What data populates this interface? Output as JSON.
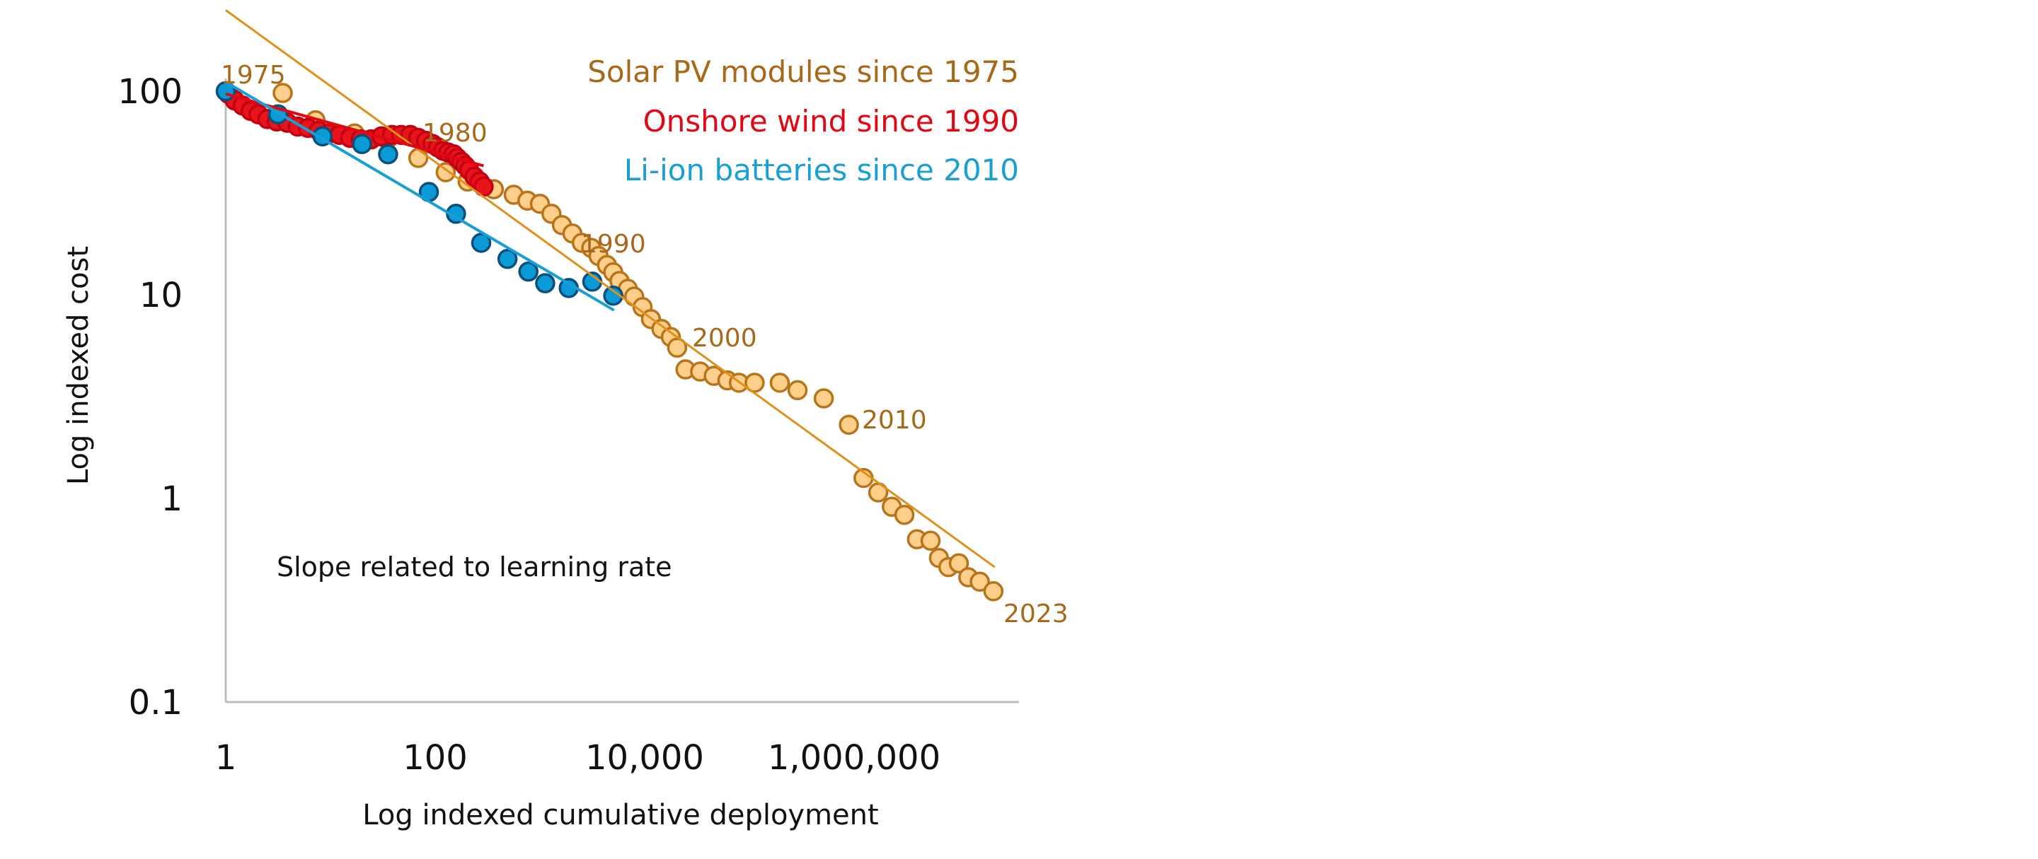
{
  "chart_data": {
    "type": "scatter",
    "title": "",
    "xlabel": "Log indexed cumulative deployment",
    "ylabel": "Log indexed cost",
    "xscale": "log",
    "yscale": "log",
    "xlim": [
      1,
      37000000
    ],
    "ylim": [
      0.1,
      200
    ],
    "x_ticks": [
      {
        "v": 1,
        "label": "1"
      },
      {
        "v": 100,
        "label": "100"
      },
      {
        "v": 10000,
        "label": "10,000"
      },
      {
        "v": 1000000,
        "label": "1,000,000"
      }
    ],
    "y_ticks": [
      {
        "v": 100,
        "label": "100"
      },
      {
        "v": 10,
        "label": "10"
      },
      {
        "v": 1,
        "label": "1"
      },
      {
        "v": 0.1,
        "label": "0.1"
      }
    ],
    "grid": false,
    "legend_placement": "top-right",
    "annotation": "Slope related to learning rate",
    "series": [
      {
        "name": "Solar PV modules since 1975",
        "color": "#a8681a",
        "fill": "#fdcf8a",
        "stroke": "#b8741a",
        "trend_color": "#e0901a",
        "x": [
          3.5,
          7.2,
          17,
          35,
          69,
          126,
          204,
          363,
          562,
          759,
          1000,
          1288,
          1622,
          2042,
          2512,
          3090,
          3631,
          4365,
          5012,
          5754,
          6918,
          7943,
          9550,
          11482,
          14454,
          17783,
          20417,
          24547,
          33884,
          45709,
          61660,
          79433,
          112202,
          194984,
          288403,
          512861,
          891251,
          1230269,
          1698244,
          2290868,
          3019952,
          3981072,
          5370318,
          6456542,
          7943282,
          10000000,
          12302688,
          15848932,
          21379621
        ],
        "y": [
          98,
          72,
          62,
          58,
          47,
          40,
          36,
          33,
          31,
          29,
          28,
          25,
          22,
          20,
          18,
          17,
          15.5,
          14,
          12.9,
          11.7,
          10.7,
          9.8,
          8.7,
          7.6,
          6.8,
          6.2,
          5.5,
          4.3,
          4.2,
          4.0,
          3.8,
          3.7,
          3.7,
          3.7,
          3.4,
          3.1,
          2.3,
          1.26,
          1.07,
          0.91,
          0.83,
          0.63,
          0.62,
          0.51,
          0.46,
          0.48,
          0.41,
          0.39,
          0.35
        ],
        "trend": {
          "x": [
            1,
            22000000
          ],
          "y": [
            250,
            0.46
          ]
        },
        "year_labels": [
          "1975",
          "1980",
          "1990",
          "2000",
          "2010",
          "2023"
        ]
      },
      {
        "name": "Onshore wind since 1990",
        "color": "#e30613",
        "fill": "#e8141b",
        "stroke": "#c40010",
        "trend_color": "#e30613",
        "x": [
          1.06,
          1.22,
          1.45,
          1.73,
          2.05,
          2.5,
          3.07,
          3.87,
          4.87,
          6.1,
          7.7,
          9.7,
          12.2,
          15.4,
          19.4,
          24.4,
          30.7,
          38.7,
          47.3,
          57.9,
          68.8,
          81.8,
          94.4,
          106,
          119,
          133,
          150,
          163,
          178,
          194,
          211,
          237,
          266,
          290
        ],
        "y": [
          97,
          90,
          85,
          80,
          77,
          73,
          71,
          70,
          67,
          66,
          64,
          62,
          61,
          59,
          58,
          58,
          60,
          61,
          61,
          61,
          59,
          57,
          55,
          53,
          51,
          50,
          49,
          47,
          45,
          43,
          41,
          38,
          36,
          34
        ],
        "trend": {
          "x": [
            1,
            290
          ],
          "y": [
            97,
            43
          ]
        }
      },
      {
        "name": "Li-ion batteries since 2010",
        "color": "#1a9fd4",
        "fill": "#0a9ad6",
        "stroke": "#0b4f7a",
        "trend_color": "#1a9fd4",
        "x": [
          1,
          3.16,
          8.4,
          20,
          35.5,
          87,
          158,
          275,
          490,
          776,
          1122,
          1884,
          3162,
          5012
        ],
        "y": [
          100,
          77,
          60,
          55,
          49,
          32,
          25,
          18,
          15,
          13,
          11.4,
          10.8,
          11.6,
          9.9
        ],
        "trend": {
          "x": [
            1,
            5100
          ],
          "y": [
            111,
            8.4
          ]
        }
      }
    ]
  }
}
